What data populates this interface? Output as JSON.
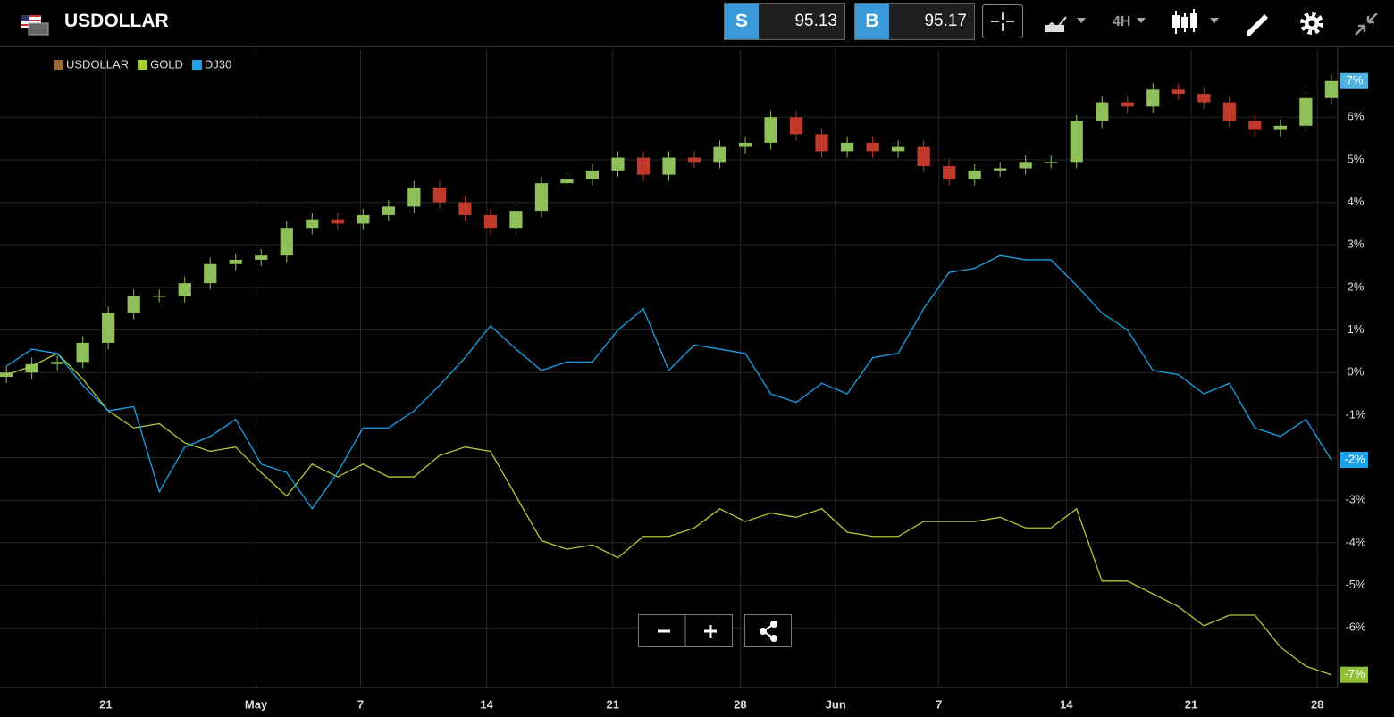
{
  "header": {
    "symbol": "USDOLLAR",
    "sell_label": "S",
    "sell_price": "95.13",
    "buy_label": "B",
    "buy_price": "95.17",
    "timeframe": "4H"
  },
  "chart_data": {
    "type": "candlestick",
    "x": [
      0,
      2,
      4,
      6,
      8,
      10,
      12,
      14,
      16,
      18,
      20,
      22,
      24,
      26,
      28,
      30,
      32,
      34,
      36,
      38,
      40,
      42,
      44,
      46,
      48,
      50,
      52,
      54,
      56,
      58,
      60,
      62,
      64,
      66,
      68,
      70,
      72,
      74,
      76,
      78,
      80,
      82,
      84,
      86,
      88,
      90,
      92,
      94,
      96,
      98,
      100,
      102,
      104
    ],
    "xlim": [
      -0.5,
      104.5
    ],
    "xticks": [
      {
        "value": 7.8,
        "label": "21"
      },
      {
        "value": 19.6,
        "label": "May"
      },
      {
        "value": 27.8,
        "label": "7"
      },
      {
        "value": 37.7,
        "label": "14"
      },
      {
        "value": 47.6,
        "label": "21"
      },
      {
        "value": 57.6,
        "label": "28"
      },
      {
        "value": 65.1,
        "label": "Jun"
      },
      {
        "value": 73.2,
        "label": "7"
      },
      {
        "value": 83.2,
        "label": "14"
      },
      {
        "value": 93.0,
        "label": "21"
      },
      {
        "value": 102.9,
        "label": "28"
      }
    ],
    "ylim": [
      -7.4,
      7.6
    ],
    "yticks": [
      {
        "value": -6,
        "label": "-6%"
      },
      {
        "value": -5,
        "label": "-5%"
      },
      {
        "value": -4,
        "label": "-4%"
      },
      {
        "value": -3,
        "label": "-3%"
      },
      {
        "value": -2,
        "label": "-2%"
      },
      {
        "value": -1,
        "label": "-1%"
      },
      {
        "value": 0,
        "label": "0%"
      },
      {
        "value": 1,
        "label": "1%"
      },
      {
        "value": 2,
        "label": "2%"
      },
      {
        "value": 3,
        "label": "3%"
      },
      {
        "value": 4,
        "label": "4%"
      },
      {
        "value": 5,
        "label": "5%"
      },
      {
        "value": 6,
        "label": "6%"
      }
    ],
    "grid": true,
    "series": [
      {
        "name": "USDOLLAR",
        "type": "candlestick",
        "up_color": "#8fbf5a",
        "down_color": "#c0392b",
        "color": "#9a6a3a",
        "tag_color": "#4fb3e0",
        "open": [
          -0.1,
          0,
          0.2,
          0.25,
          0.7,
          1.4,
          1.8,
          1.8,
          2.1,
          2.55,
          2.65,
          2.75,
          3.4,
          3.6,
          3.5,
          3.7,
          3.9,
          4.35,
          4.0,
          3.7,
          3.4,
          3.8,
          4.45,
          4.55,
          4.75,
          5.05,
          4.65,
          5.05,
          4.95,
          5.3,
          5.4,
          6.0,
          5.6,
          5.2,
          5.4,
          5.2,
          5.3,
          4.85,
          4.55,
          4.75,
          4.8,
          4.95,
          4.95,
          5.9,
          6.35,
          6.25,
          6.65,
          6.55,
          6.35,
          5.9,
          5.7,
          5.8,
          6.45
        ],
        "high": [
          0.15,
          0.35,
          0.4,
          0.85,
          1.55,
          1.95,
          1.95,
          2.25,
          2.7,
          2.8,
          2.9,
          3.55,
          3.75,
          3.75,
          3.85,
          4.05,
          4.5,
          4.5,
          4.15,
          3.85,
          3.95,
          4.6,
          4.7,
          4.9,
          5.2,
          5.2,
          5.2,
          5.2,
          5.45,
          5.55,
          6.15,
          6.15,
          5.75,
          5.55,
          5.55,
          5.45,
          5.45,
          5.0,
          4.9,
          4.95,
          5.1,
          5.1,
          6.05,
          6.5,
          6.5,
          6.8,
          6.8,
          6.7,
          6.5,
          6.05,
          5.95,
          6.6,
          7.0
        ],
        "low": [
          -0.25,
          -0.15,
          0.05,
          0.1,
          0.55,
          1.25,
          1.65,
          1.65,
          1.95,
          2.4,
          2.5,
          2.6,
          3.25,
          3.35,
          3.35,
          3.55,
          3.75,
          3.85,
          3.55,
          3.25,
          3.25,
          3.65,
          4.3,
          4.4,
          4.6,
          4.5,
          4.5,
          4.8,
          4.8,
          5.15,
          5.25,
          5.45,
          5.05,
          5.05,
          5.05,
          5.05,
          4.7,
          4.4,
          4.4,
          4.6,
          4.65,
          4.8,
          4.8,
          5.75,
          6.1,
          6.1,
          6.4,
          6.2,
          5.75,
          5.55,
          5.55,
          5.65,
          6.3
        ],
        "close": [
          0,
          0.2,
          0.25,
          0.7,
          1.4,
          1.8,
          1.8,
          2.1,
          2.55,
          2.65,
          2.75,
          3.4,
          3.6,
          3.5,
          3.7,
          3.9,
          4.35,
          4.0,
          3.7,
          3.4,
          3.8,
          4.45,
          4.55,
          4.75,
          5.05,
          4.65,
          5.05,
          4.95,
          5.3,
          5.4,
          6.0,
          5.6,
          5.2,
          5.4,
          5.2,
          5.3,
          4.85,
          4.55,
          4.75,
          4.8,
          4.95,
          4.95,
          5.9,
          6.35,
          6.25,
          6.65,
          6.55,
          6.35,
          5.9,
          5.7,
          5.8,
          6.45,
          6.85
        ],
        "last_label": "7%"
      },
      {
        "name": "GOLD",
        "type": "line",
        "color": "#a9cc3a",
        "tag_color": "#8fbf3a",
        "values": [
          -0.05,
          0.15,
          0.45,
          -0.15,
          -0.9,
          -1.3,
          -1.2,
          -1.65,
          -1.85,
          -1.75,
          -2.35,
          -2.9,
          -2.15,
          -2.45,
          -2.15,
          -2.45,
          -2.45,
          -1.95,
          -1.75,
          -1.85,
          -2.9,
          -3.95,
          -4.15,
          -4.05,
          -4.35,
          -3.85,
          -3.85,
          -3.65,
          -3.2,
          -3.5,
          -3.3,
          -3.4,
          -3.2,
          -3.75,
          -3.85,
          -3.85,
          -3.5,
          -3.5,
          -3.5,
          -3.4,
          -3.65,
          -3.65,
          -3.2,
          -4.9,
          -4.9,
          -5.2,
          -5.5,
          -5.95,
          -5.7,
          -5.7,
          -6.45,
          -6.9,
          -7.1
        ],
        "last_label": "-7%"
      },
      {
        "name": "DJ30",
        "type": "line",
        "color": "#1aa3e8",
        "tag_color": "#1aa3e8",
        "values": [
          0.15,
          0.55,
          0.45,
          -0.3,
          -0.9,
          -0.8,
          -2.8,
          -1.75,
          -1.5,
          -1.1,
          -2.15,
          -2.35,
          -3.2,
          -2.35,
          -1.3,
          -1.3,
          -0.9,
          -0.3,
          0.35,
          1.1,
          0.55,
          0.05,
          0.25,
          0.25,
          1.0,
          1.5,
          0.05,
          0.65,
          0.55,
          0.45,
          -0.5,
          -0.7,
          -0.25,
          -0.5,
          0.35,
          0.45,
          1.5,
          2.35,
          2.45,
          2.75,
          2.65,
          2.65,
          2.05,
          1.4,
          1.0,
          0.05,
          -0.05,
          -0.5,
          -0.25,
          -1.3,
          -1.5,
          -1.1,
          -2.05
        ],
        "last_label": "-2%"
      }
    ]
  }
}
